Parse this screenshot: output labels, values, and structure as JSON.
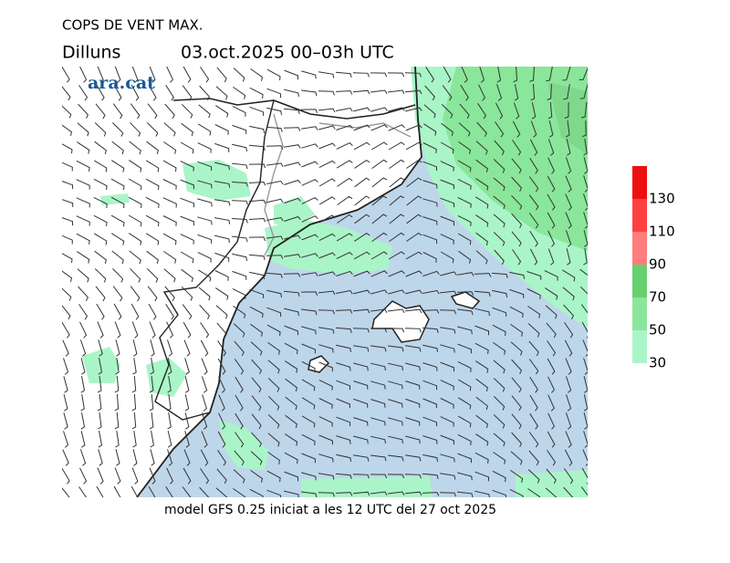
{
  "header": {
    "title": "COPS DE VENT MAX.",
    "day": "Dilluns",
    "period": "03.oct.2025 00–03h UTC"
  },
  "logo": "ara.cat",
  "footer": "model GFS 0.25 iniciat a les 12 UTC del 27 oct 2025",
  "legend": {
    "ticks": [
      30,
      50,
      70,
      90,
      110,
      130
    ],
    "colors": [
      "#aaf5c8",
      "#8ae69a",
      "#66d06e",
      "#ff7d7d",
      "#ff4040",
      "#ee1010"
    ]
  }
}
